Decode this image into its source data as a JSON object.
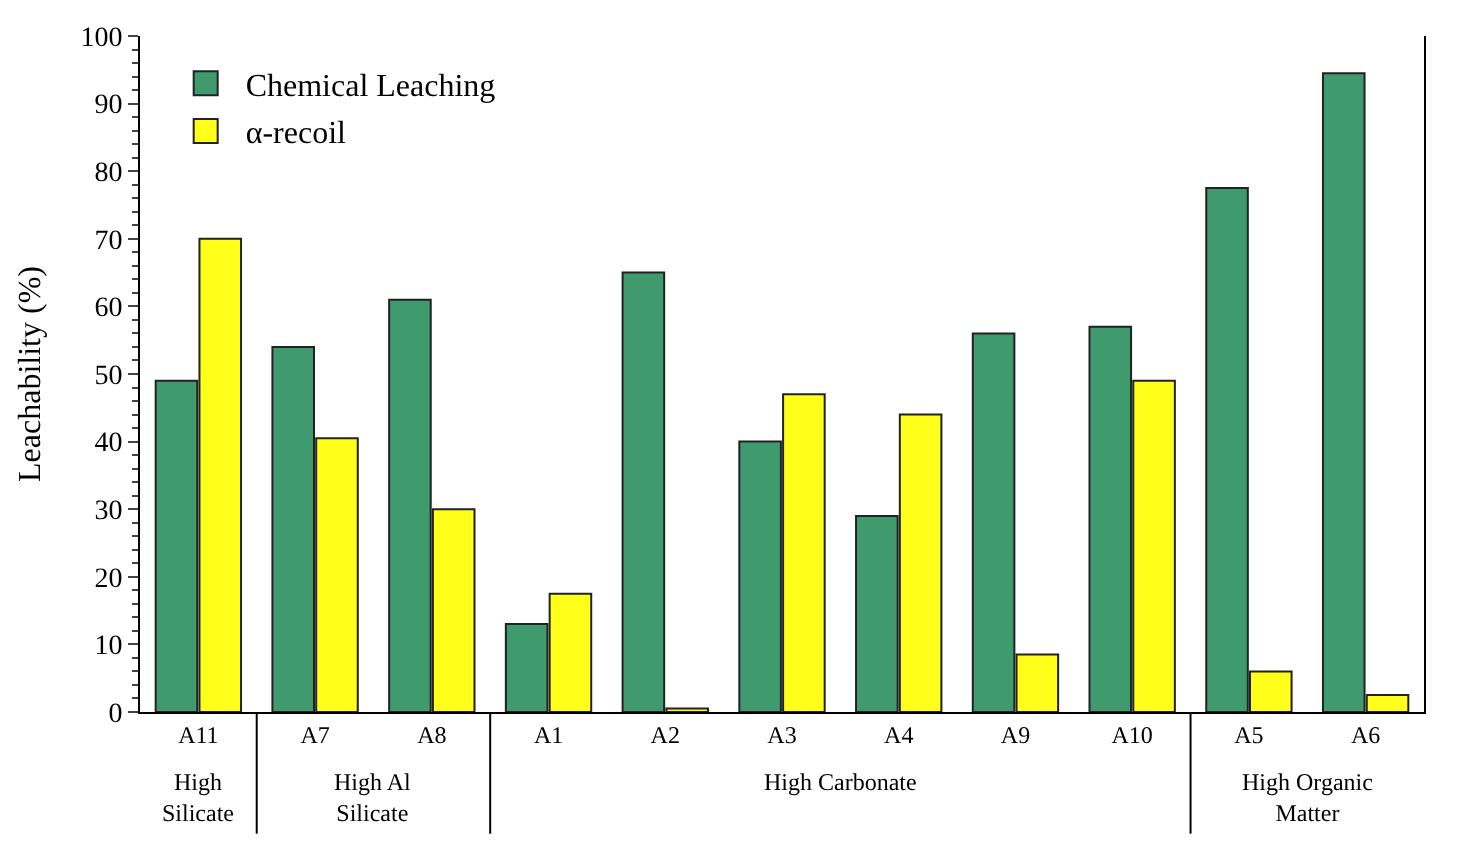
{
  "chart_data": {
    "type": "bar",
    "ylabel": "Leachability (%)",
    "categories": [
      "A11",
      "A7",
      "A8",
      "A1",
      "A2",
      "A3",
      "A4",
      "A9",
      "A10",
      "A5",
      "A6"
    ],
    "series": [
      {
        "name": "Chemical Leaching",
        "color": "#3f9a6e",
        "values": [
          49,
          54,
          61,
          13,
          65,
          40,
          29,
          56,
          57,
          77.5,
          94.5
        ]
      },
      {
        "name": "α-recoil",
        "color": "#ffff1a",
        "values": [
          70,
          40.5,
          30,
          17.5,
          0.5,
          47,
          44,
          8.5,
          49,
          6,
          2.5
        ]
      }
    ],
    "ylim": [
      0,
      100
    ],
    "yticks": [
      0,
      10,
      20,
      30,
      40,
      50,
      60,
      70,
      80,
      90,
      100
    ],
    "legend": "top left",
    "annotations": [
      "High Silicate",
      "High Al Silicate",
      "High Carbonate",
      "High Organic Matter"
    ]
  }
}
